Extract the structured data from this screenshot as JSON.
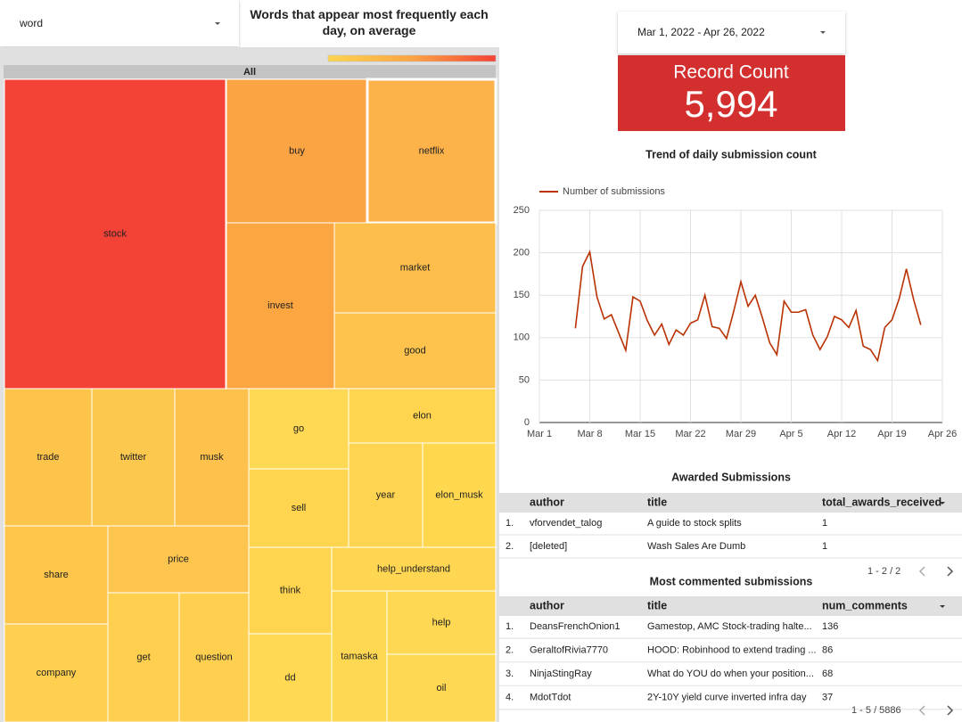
{
  "filter": {
    "label": "word"
  },
  "treemap": {
    "title": "Words that appear most frequently each day, on average",
    "root": "All",
    "words": [
      "stock",
      "buy",
      "netflix",
      "invest",
      "market",
      "good",
      "trade",
      "twitter",
      "musk",
      "go",
      "elon",
      "sell",
      "year",
      "elon_musk",
      "share",
      "price",
      "think",
      "help_understand",
      "get",
      "question",
      "company",
      "dd",
      "tamaska",
      "help",
      "oil"
    ]
  },
  "date_range": {
    "label": "Mar 1, 2022 - Apr 26, 2022"
  },
  "scorecard": {
    "label": "Record Count",
    "value": "5,994"
  },
  "chart_data": {
    "type": "line",
    "title": "Trend of daily submission count",
    "x": [
      "2022-03-06",
      "2022-03-07",
      "2022-03-08",
      "2022-03-09",
      "2022-03-10",
      "2022-03-11",
      "2022-03-12",
      "2022-03-13",
      "2022-03-14",
      "2022-03-15",
      "2022-03-16",
      "2022-03-17",
      "2022-03-18",
      "2022-03-19",
      "2022-03-20",
      "2022-03-21",
      "2022-03-22",
      "2022-03-23",
      "2022-03-24",
      "2022-03-25",
      "2022-03-26",
      "2022-03-27",
      "2022-03-28",
      "2022-03-29",
      "2022-03-30",
      "2022-03-31",
      "2022-04-01",
      "2022-04-02",
      "2022-04-03",
      "2022-04-04",
      "2022-04-05",
      "2022-04-06",
      "2022-04-07",
      "2022-04-08",
      "2022-04-09",
      "2022-04-10",
      "2022-04-11",
      "2022-04-12",
      "2022-04-13",
      "2022-04-14",
      "2022-04-15",
      "2022-04-16",
      "2022-04-17",
      "2022-04-18",
      "2022-04-19",
      "2022-04-20",
      "2022-04-21",
      "2022-04-22",
      "2022-04-23"
    ],
    "series": [
      {
        "name": "Number of submissions",
        "color": "#b93203",
        "values": [
          111,
          184,
          201,
          148,
          122,
          127,
          106,
          85,
          148,
          143,
          120,
          103,
          116,
          92,
          109,
          103,
          117,
          121,
          150,
          113,
          111,
          99,
          131,
          166,
          137,
          150,
          123,
          94,
          80,
          143,
          130,
          130,
          133,
          103,
          86,
          101,
          125,
          121,
          112,
          132,
          90,
          86,
          73,
          112,
          121,
          146,
          181,
          145,
          115
        ]
      }
    ],
    "xlim": [
      "2022-03-01",
      "2022-04-26"
    ],
    "xticks": [
      {
        "value": "2022-03-01",
        "label": "Mar 1"
      },
      {
        "value": "2022-03-08",
        "label": "Mar 8"
      },
      {
        "value": "2022-03-15",
        "label": "Mar 15"
      },
      {
        "value": "2022-03-22",
        "label": "Mar 22"
      },
      {
        "value": "2022-03-29",
        "label": "Mar 29"
      },
      {
        "value": "2022-04-05",
        "label": "Apr 5"
      },
      {
        "value": "2022-04-12",
        "label": "Apr 12"
      },
      {
        "value": "2022-04-19",
        "label": "Apr 19"
      },
      {
        "value": "2022-04-26",
        "label": "Apr 26"
      }
    ],
    "ylim": [
      0,
      250
    ],
    "yticks": [
      0,
      50,
      100,
      150,
      200,
      250
    ],
    "grid": true
  },
  "awarded_table": {
    "title": "Awarded Submissions",
    "columns": [
      "author",
      "title",
      "total_awards_received"
    ],
    "rows": [
      [
        "1.",
        "vforvendet_talog",
        "A guide to stock splits",
        1
      ],
      [
        "2.",
        "[deleted]",
        "Wash Sales Are Dumb",
        1
      ]
    ],
    "pagination": "1 - 2 / 2"
  },
  "commented_table": {
    "title": "Most commented submissions",
    "columns": [
      "author",
      "title",
      "num_comments"
    ],
    "rows": [
      [
        "1.",
        "DeansFrenchOnion1",
        "Gamestop, AMC Stock-trading halte...",
        136
      ],
      [
        "2.",
        "GeraltofRivia7770",
        "HOOD: Robinhood to extend trading ...",
        86
      ],
      [
        "3.",
        "NinjaStingRay",
        "What do YOU do when your position...",
        68
      ],
      [
        "4.",
        "MdotTdot",
        "2Y-10Y yield curve inverted infra day",
        37
      ]
    ],
    "pagination": "1 - 5 / 5886"
  }
}
